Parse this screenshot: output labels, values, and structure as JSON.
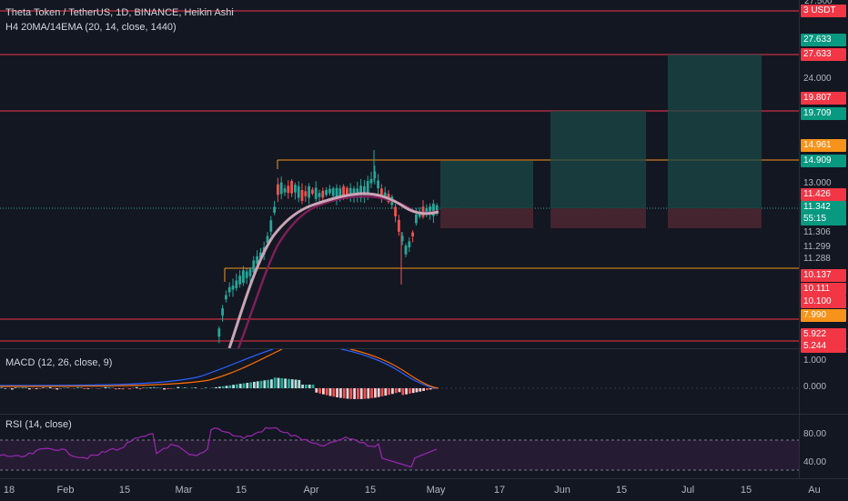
{
  "header": {
    "title": "Theta Token / TetherUS, 1D, BINANCE, Heikin Ashi",
    "indicator": "H4 20MA/14EMA (20, 14, close, 1440)"
  },
  "macd": {
    "legend": "MACD (12, 26, close, 9)"
  },
  "rsi": {
    "legend": "RSI (14, close)"
  },
  "price_scale": {
    "top_partial": "27.500",
    "labels": [
      {
        "text": "3 USDT",
        "bg": "#f23645"
      },
      {
        "text": "27.633",
        "bg": "#089981"
      },
      {
        "text": "27.633",
        "bg": "#f23645"
      },
      {
        "text": "24.000",
        "bg": ""
      },
      {
        "text": "19.807",
        "bg": "#f23645"
      },
      {
        "text": "19.709",
        "bg": "#089981"
      },
      {
        "text": "14.961",
        "bg": "#f7931a"
      },
      {
        "text": "14.909",
        "bg": "#089981"
      },
      {
        "text": "13.000",
        "bg": ""
      },
      {
        "text": "11.426",
        "bg": "#f23645"
      },
      {
        "text": "11.342",
        "bg": "#089981"
      },
      {
        "text": "55:15",
        "bg": "#089981"
      },
      {
        "text": "11.306",
        "bg": ""
      },
      {
        "text": "11.299",
        "bg": ""
      },
      {
        "text": "11.288",
        "bg": ""
      },
      {
        "text": "10.137",
        "bg": "#f23645"
      },
      {
        "text": "10.111",
        "bg": "#f23645"
      },
      {
        "text": "10.100",
        "bg": "#f23645"
      },
      {
        "text": "7.990",
        "bg": "#f7931a"
      },
      {
        "text": "5.922",
        "bg": "#f23645"
      },
      {
        "text": "5.244",
        "bg": "#f23645"
      }
    ],
    "macd_labels": [
      "1.000",
      "0.000"
    ],
    "rsi_labels": [
      "80.00",
      "40.00"
    ]
  },
  "time_axis": [
    "18",
    "Feb",
    "15",
    "Mar",
    "15",
    "Apr",
    "15",
    "May",
    "17",
    "Jun",
    "15",
    "Jul",
    "15",
    "Au"
  ],
  "chart_data": {
    "type": "candlestick",
    "symbol": "THETA/USDT",
    "interval": "1D",
    "horizontal_levels": [
      27.633,
      19.807,
      14.909,
      10.137,
      7.99,
      5.922
    ],
    "colors": {
      "up": "#26a69a",
      "down": "#ef5350",
      "ma": "#c9a5b5",
      "ema": "#7e1f57",
      "macd": "#2962ff",
      "signal": "#ff6d00",
      "level": "#f23645",
      "orange": "#f7931a"
    }
  }
}
